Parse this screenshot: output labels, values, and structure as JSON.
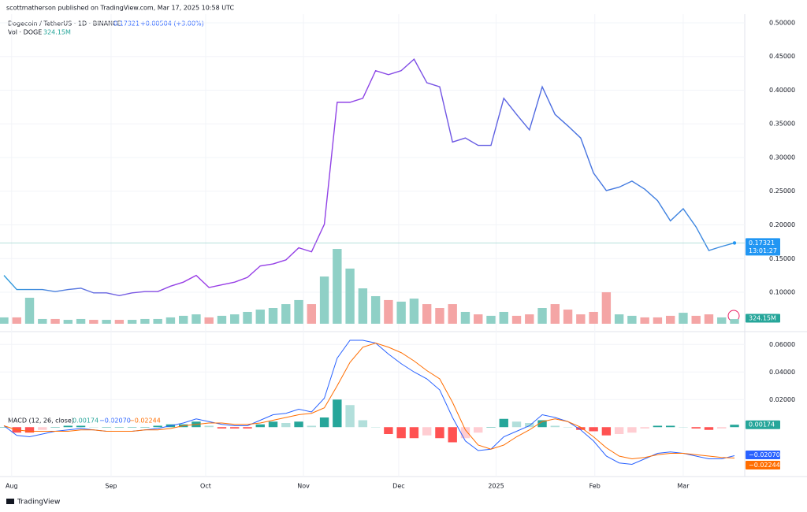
{
  "header": "scottmatherson published on TradingView.com, Mar 17, 2025 10:58 UTC",
  "footer": "TradingView",
  "chart_data": [
    {
      "type": "line",
      "title": "Dogecoin / TetherUS · 1D · BINANCE",
      "last": 0.17321,
      "change": "+0.00504 (+3.00%)",
      "countdown": "13:01:27",
      "series": [
        {
          "colors": [
            "#2d9cdb",
            "#9b3ce6",
            "#8e45e6",
            "#4a6ee0",
            "#3a8fe0"
          ],
          "values": [
            0.125,
            0.104,
            0.104,
            0.104,
            0.101,
            0.104,
            0.106,
            0.099,
            0.099,
            0.095,
            0.099,
            0.101,
            0.101,
            0.109,
            0.115,
            0.125,
            0.107,
            0.111,
            0.115,
            0.122,
            0.139,
            0.142,
            0.148,
            0.166,
            0.16,
            0.201,
            0.382,
            0.382,
            0.388,
            0.429,
            0.423,
            0.429,
            0.446,
            0.411,
            0.405,
            0.323,
            0.329,
            0.318,
            0.318,
            0.388,
            0.364,
            0.341,
            0.405,
            0.364,
            0.347,
            0.329,
            0.277,
            0.251,
            0.256,
            0.265,
            0.253,
            0.236,
            0.206,
            0.224,
            0.197,
            0.162,
            0.168,
            0.17321
          ]
        }
      ],
      "ylim": [
        0.0427,
        0.5105
      ],
      "yticks": [
        {
          "value": 0.5,
          "label": "0.50000"
        },
        {
          "value": 0.45,
          "label": "0.45000"
        },
        {
          "value": 0.4,
          "label": "0.40000"
        },
        {
          "value": 0.35,
          "label": "0.35000"
        },
        {
          "value": 0.3,
          "label": "0.30000"
        },
        {
          "value": 0.25,
          "label": "0.25000"
        },
        {
          "value": 0.2,
          "label": "0.20000"
        },
        {
          "value": 0.15,
          "label": "0.15000"
        },
        {
          "value": 0.1,
          "label": "0.10000"
        }
      ],
      "xlim": [
        0,
        57.8
      ],
      "xticks": [
        {
          "value": 0.6,
          "label": "Aug"
        },
        {
          "value": 8.36,
          "label": "Sep"
        },
        {
          "value": 15.74,
          "label": "Oct"
        },
        {
          "value": 23.37,
          "label": "Nov"
        },
        {
          "value": 30.8,
          "label": "Dec"
        },
        {
          "value": 38.4,
          "label": "2025"
        },
        {
          "value": 46.1,
          "label": "Feb"
        },
        {
          "value": 53.0,
          "label": "Mar"
        }
      ],
      "grid": true
    },
    {
      "type": "bar",
      "title": "Vol · DOGE",
      "last": {
        "value": 324.15,
        "label": "324.15M"
      },
      "up_color": "#8fd0c6",
      "down_color": "#f4a5a5",
      "label_color": "#26a69a",
      "values": [
        440,
        440,
        1800,
        330,
        330,
        270,
        330,
        270,
        270,
        270,
        270,
        330,
        330,
        440,
        550,
        650,
        440,
        550,
        650,
        820,
        980,
        1090,
        1360,
        1640,
        1360,
        3270,
        5180,
        3820,
        2450,
        1910,
        1640,
        1530,
        1740,
        1360,
        1090,
        1360,
        820,
        650,
        550,
        820,
        550,
        650,
        1090,
        1360,
        980,
        650,
        820,
        2180,
        650,
        550,
        440,
        440,
        550,
        760,
        550,
        650,
        440,
        324.15
      ],
      "ylim": [
        0,
        6000
      ]
    },
    {
      "type": "macd",
      "title": "MACD (12, 26, close)",
      "ylim": [
        -0.033,
        0.067
      ],
      "yticks": [
        {
          "value": 0.06,
          "label": "0.06000"
        },
        {
          "value": 0.04,
          "label": "0.04000"
        },
        {
          "value": 0.02,
          "label": "0.02000"
        }
      ],
      "series": [
        {
          "color": "#26a69a",
          "colors": [
            "#26a69a",
            "#b2dfdb",
            "#ff5252",
            "#ffcdd2"
          ],
          "last": 0.00174,
          "values": [
            0,
            -0.004,
            -0.004,
            -0.002,
            0,
            0.001,
            0.001,
            0,
            0,
            0,
            0,
            0,
            0.001,
            0.002,
            0.002,
            0.004,
            0.001,
            -0.001,
            -0.001,
            -0.001,
            0.002,
            0.004,
            0.003,
            0.004,
            0.001,
            0.007,
            0.02,
            0.016,
            0.005,
            0,
            -0.005,
            -0.008,
            -0.008,
            -0.006,
            -0.008,
            -0.011,
            -0.008,
            -0.004,
            0,
            0.006,
            0.004,
            0.003,
            0.005,
            0.001,
            0,
            -0.002,
            -0.003,
            -0.006,
            -0.005,
            -0.004,
            -0.001,
            0.001,
            0.001,
            0,
            -0.001,
            -0.002,
            -0.001,
            0.00174
          ]
        },
        {
          "color": "#2962ff",
          "last": {
            "value": -0.0207,
            "label": "−0.02070"
          },
          "values": [
            0.001,
            -0.006,
            -0.007,
            -0.005,
            -0.003,
            -0.002,
            -0.001,
            -0.002,
            -0.003,
            -0.003,
            -0.003,
            -0.002,
            -0.001,
            0.001,
            0.003,
            0.006,
            0.004,
            0.002,
            0.001,
            0.001,
            0.005,
            0.009,
            0.01,
            0.013,
            0.011,
            0.021,
            0.05,
            0.063,
            0.063,
            0.061,
            0.053,
            0.046,
            0.04,
            0.035,
            0.027,
            0.007,
            -0.01,
            -0.017,
            -0.016,
            -0.007,
            -0.003,
            0.001,
            0.009,
            0.007,
            0.004,
            -0.002,
            -0.01,
            -0.021,
            -0.026,
            -0.027,
            -0.023,
            -0.019,
            -0.018,
            -0.019,
            -0.021,
            -0.023,
            -0.023,
            -0.0207
          ]
        },
        {
          "color": "#ff6d00",
          "last": {
            "value": -0.02244,
            "label": "−0.02244"
          },
          "values": [
            0.001,
            -0.002,
            -0.003,
            -0.003,
            -0.003,
            -0.003,
            -0.002,
            -0.002,
            -0.003,
            -0.003,
            -0.003,
            -0.002,
            -0.002,
            -0.001,
            0.001,
            0.002,
            0.003,
            0.003,
            0.002,
            0.002,
            0.003,
            0.005,
            0.007,
            0.009,
            0.01,
            0.014,
            0.03,
            0.047,
            0.058,
            0.061,
            0.058,
            0.054,
            0.048,
            0.041,
            0.035,
            0.018,
            -0.002,
            -0.013,
            -0.016,
            -0.013,
            -0.007,
            -0.002,
            0.004,
            0.006,
            0.004,
            0,
            -0.007,
            -0.015,
            -0.021,
            -0.023,
            -0.022,
            -0.02,
            -0.019,
            -0.019,
            -0.02,
            -0.021,
            -0.022,
            -0.02244
          ]
        }
      ]
    }
  ]
}
